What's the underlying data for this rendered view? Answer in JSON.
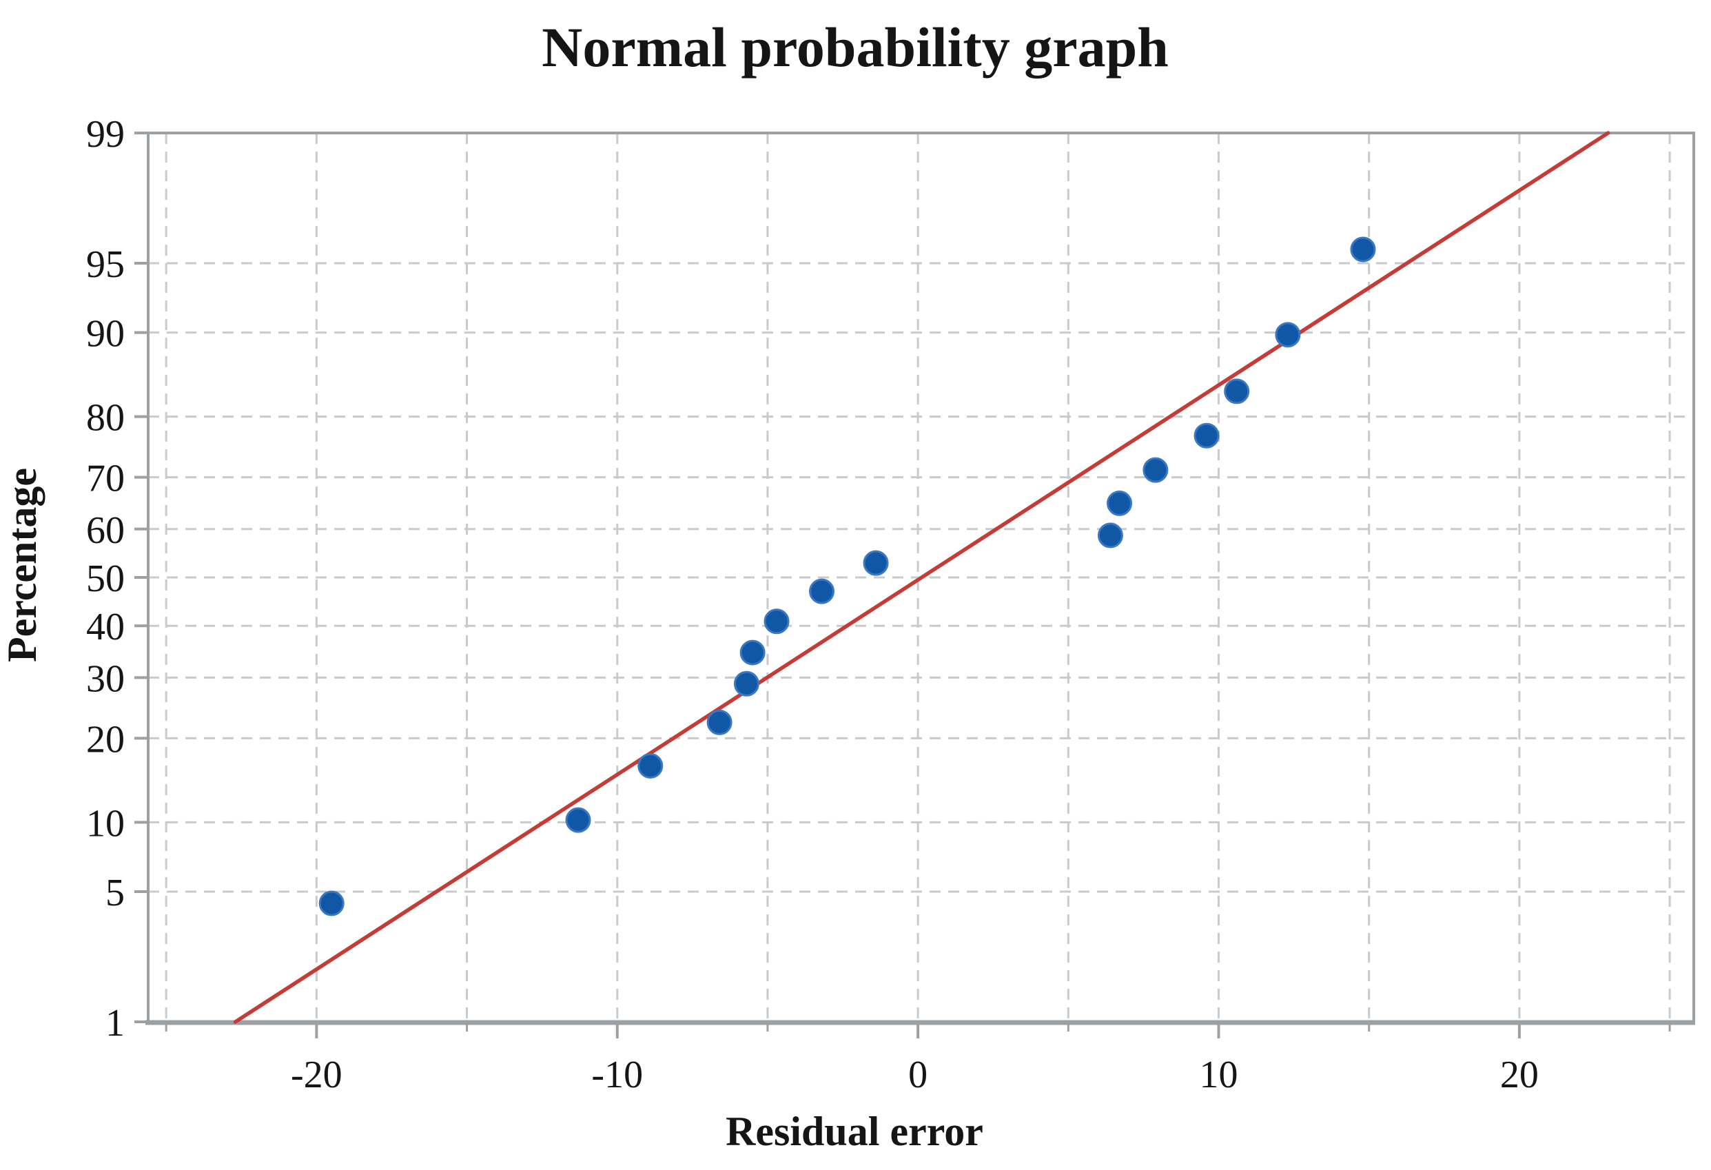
{
  "chart_data": {
    "type": "scatter",
    "title": "Normal probability graph",
    "xlabel": "Residual error",
    "ylabel": "Percentage",
    "y_scale": "normal-probability",
    "xlim": [
      -25.6,
      25.8
    ],
    "ylim": [
      1,
      99
    ],
    "grid": "dashed",
    "x_ticks_major": [
      -20,
      -10,
      0,
      10,
      20
    ],
    "x_ticks_minor": [
      -25,
      -15,
      -5,
      5,
      15,
      25
    ],
    "x_gridlines": [
      -25,
      -20,
      -15,
      -10,
      -5,
      0,
      5,
      10,
      15,
      20,
      25
    ],
    "y_ticks": [
      99,
      95,
      90,
      80,
      70,
      60,
      50,
      40,
      30,
      20,
      10,
      5,
      1
    ],
    "y_gridlines": [
      95,
      90,
      80,
      70,
      60,
      50,
      40,
      30,
      20,
      10,
      5
    ],
    "points": [
      {
        "x": -19.5,
        "y": 4.4
      },
      {
        "x": -11.3,
        "y": 10.2
      },
      {
        "x": -8.9,
        "y": 16.2
      },
      {
        "x": -6.6,
        "y": 22.4
      },
      {
        "x": -5.7,
        "y": 28.9
      },
      {
        "x": -5.5,
        "y": 34.7
      },
      {
        "x": -4.7,
        "y": 40.9
      },
      {
        "x": -3.2,
        "y": 47.1
      },
      {
        "x": -1.4,
        "y": 53.0
      },
      {
        "x": 6.4,
        "y": 58.7
      },
      {
        "x": 6.7,
        "y": 65.1
      },
      {
        "x": 7.9,
        "y": 71.3
      },
      {
        "x": 9.6,
        "y": 77.1
      },
      {
        "x": 10.6,
        "y": 83.5
      },
      {
        "x": 12.3,
        "y": 89.8
      },
      {
        "x": 14.8,
        "y": 95.7
      }
    ],
    "fit_line": {
      "x_start": -22.7,
      "y_start": 1,
      "x_end": 22.95,
      "y_end": 99
    },
    "colors": {
      "point": "#1058a6",
      "point_edge": "#3c77c2",
      "line": "#c43c35",
      "grid": "#c9cacb",
      "frame": "#9da0a3",
      "text": "#151515"
    }
  }
}
